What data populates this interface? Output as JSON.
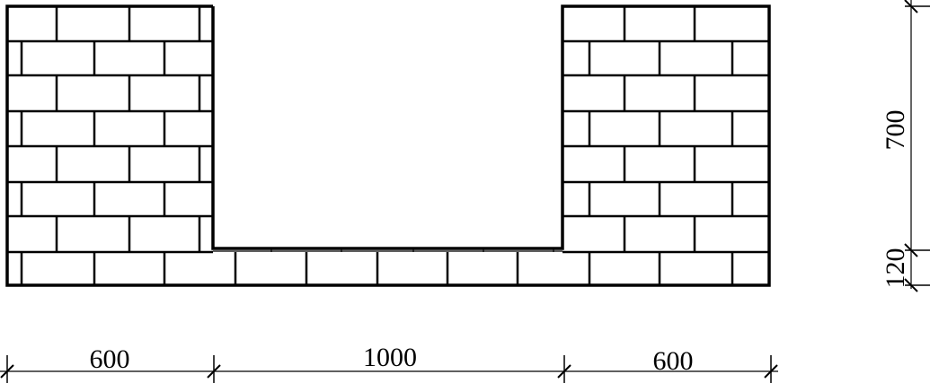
{
  "drawing": {
    "line_color": "#000000",
    "background": "#ffffff",
    "dimensions": {
      "left_wall_width": "600",
      "channel_width": "1000",
      "right_wall_width": "600",
      "wall_height": "700",
      "base_thickness": "120"
    }
  }
}
